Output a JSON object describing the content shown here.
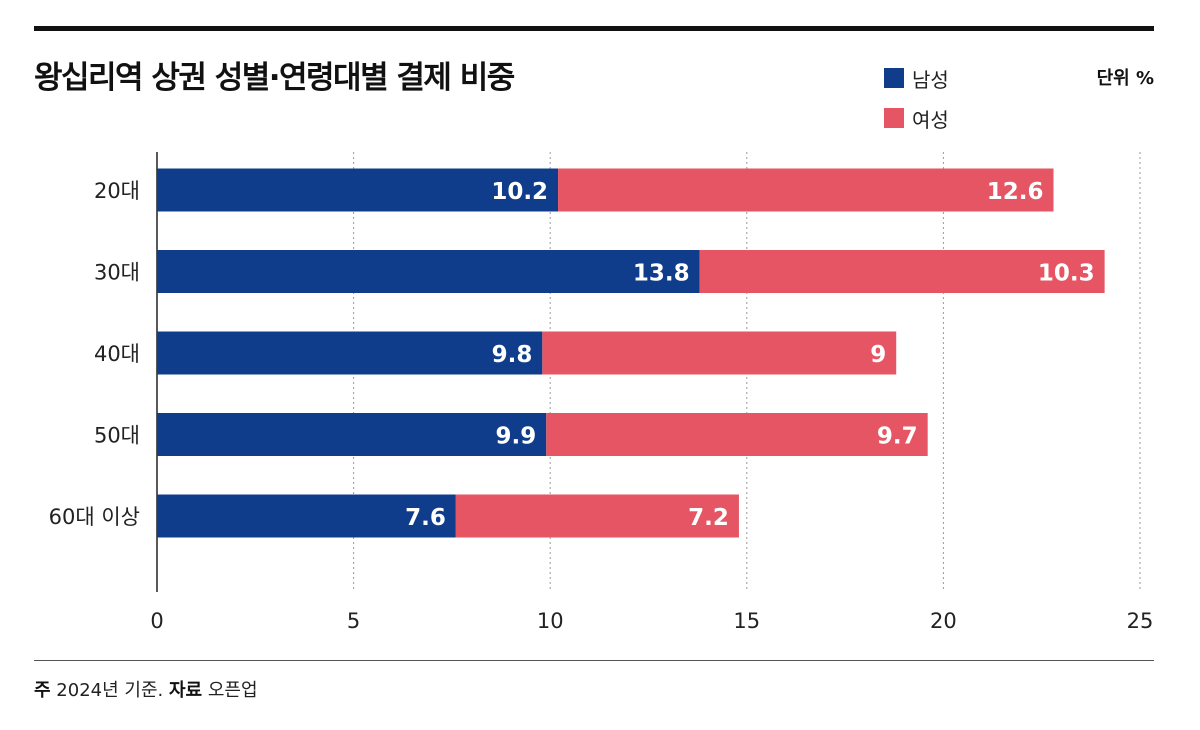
{
  "title": "왕십리역 상권 성별·연령대별 결제 비중",
  "unit_label": "단위 %",
  "legend": [
    {
      "label": "남성",
      "color": "#0f3d8c"
    },
    {
      "label": "여성",
      "color": "#e55563"
    }
  ],
  "chart_data": {
    "type": "bar",
    "orientation": "horizontal",
    "stacked": true,
    "categories": [
      "20대",
      "30대",
      "40대",
      "50대",
      "60대 이상"
    ],
    "series": [
      {
        "name": "남성",
        "values": [
          10.2,
          13.8,
          9.8,
          9.9,
          7.6
        ],
        "color": "#0f3d8c"
      },
      {
        "name": "여성",
        "values": [
          12.6,
          10.3,
          9,
          9.7,
          7.2
        ],
        "color": "#e55563"
      }
    ],
    "xlim": [
      0,
      25
    ],
    "xticks": [
      0,
      5,
      10,
      15,
      20,
      25
    ],
    "grid": "vertical-dotted",
    "legend_position": "top-right"
  },
  "footnote": {
    "note_label": "주",
    "note_text": "2024년 기준.",
    "source_label": "자료",
    "source_text": "오픈업"
  }
}
